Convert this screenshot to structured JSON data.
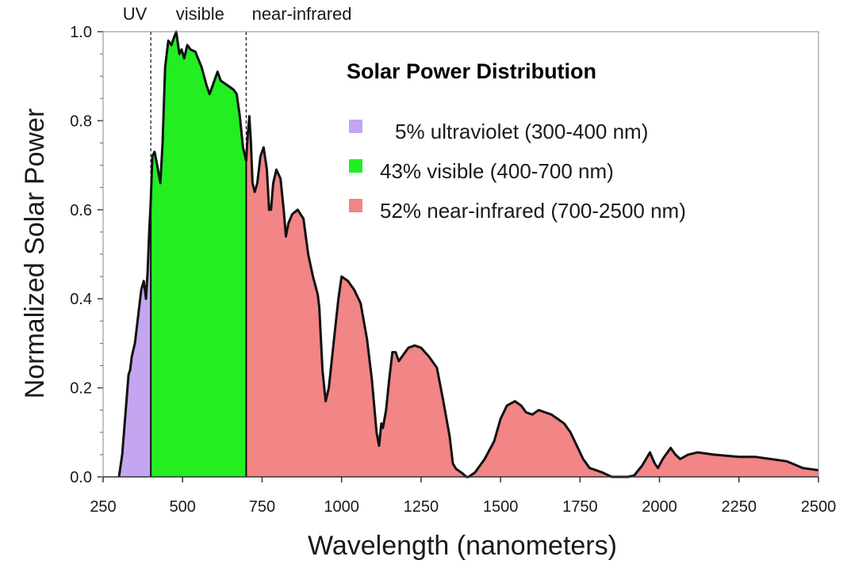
{
  "chart_data": {
    "type": "area",
    "title": "Solar Power Distribution",
    "xlabel": "Wavelength (nanometers)",
    "ylabel": "Normalized Solar Power",
    "xlim": [
      250,
      2500
    ],
    "ylim": [
      0,
      1.0
    ],
    "x_ticks": [
      250,
      500,
      750,
      1000,
      1250,
      1500,
      1750,
      2000,
      2250,
      2500
    ],
    "y_ticks": [
      0.0,
      0.2,
      0.4,
      0.6,
      0.8,
      1.0
    ],
    "y_tick_labels": [
      "0.0",
      "0.2",
      "0.4",
      "0.6",
      "0.8",
      "1.0"
    ],
    "grid": false,
    "legend_position": "top-right",
    "region_labels": [
      {
        "text": "UV",
        "x": 350
      },
      {
        "text": "visible",
        "x": 555
      },
      {
        "text": "near-infrared",
        "x": 875
      }
    ],
    "dividers": [
      400,
      700
    ],
    "series": [
      {
        "legend": "5% ultraviolet (300-400 nm)",
        "color": "#c4a6f0",
        "range": [
          300,
          400
        ],
        "points": [
          [
            300,
            0
          ],
          [
            310,
            0.05
          ],
          [
            320,
            0.14
          ],
          [
            330,
            0.23
          ],
          [
            335,
            0.24
          ],
          [
            340,
            0.27
          ],
          [
            350,
            0.3
          ],
          [
            360,
            0.36
          ],
          [
            370,
            0.42
          ],
          [
            378,
            0.44
          ],
          [
            385,
            0.4
          ],
          [
            390,
            0.46
          ],
          [
            395,
            0.55
          ],
          [
            400,
            0.62
          ]
        ]
      },
      {
        "legend": "43% visible (400-700 nm)",
        "color": "#22ee22",
        "range": [
          400,
          700
        ],
        "points": [
          [
            400,
            0.62
          ],
          [
            405,
            0.72
          ],
          [
            412,
            0.73
          ],
          [
            420,
            0.7
          ],
          [
            430,
            0.66
          ],
          [
            437,
            0.75
          ],
          [
            445,
            0.92
          ],
          [
            455,
            0.98
          ],
          [
            465,
            0.97
          ],
          [
            472,
            0.985
          ],
          [
            480,
            1.0
          ],
          [
            490,
            0.95
          ],
          [
            497,
            0.96
          ],
          [
            505,
            0.94
          ],
          [
            515,
            0.97
          ],
          [
            525,
            0.96
          ],
          [
            540,
            0.955
          ],
          [
            560,
            0.92
          ],
          [
            575,
            0.88
          ],
          [
            585,
            0.86
          ],
          [
            600,
            0.89
          ],
          [
            610,
            0.91
          ],
          [
            620,
            0.89
          ],
          [
            640,
            0.88
          ],
          [
            660,
            0.87
          ],
          [
            670,
            0.86
          ],
          [
            680,
            0.81
          ],
          [
            690,
            0.74
          ],
          [
            700,
            0.71
          ]
        ]
      },
      {
        "legend": "52% near-infrared (700-2500 nm)",
        "color": "#f28585",
        "range": [
          700,
          2500
        ],
        "points": [
          [
            700,
            0.71
          ],
          [
            705,
            0.77
          ],
          [
            710,
            0.81
          ],
          [
            715,
            0.75
          ],
          [
            720,
            0.66
          ],
          [
            727,
            0.64
          ],
          [
            735,
            0.66
          ],
          [
            745,
            0.72
          ],
          [
            755,
            0.74
          ],
          [
            765,
            0.69
          ],
          [
            772,
            0.6
          ],
          [
            778,
            0.6
          ],
          [
            785,
            0.66
          ],
          [
            795,
            0.69
          ],
          [
            808,
            0.67
          ],
          [
            818,
            0.6
          ],
          [
            825,
            0.54
          ],
          [
            833,
            0.57
          ],
          [
            845,
            0.59
          ],
          [
            862,
            0.6
          ],
          [
            880,
            0.58
          ],
          [
            895,
            0.5
          ],
          [
            910,
            0.45
          ],
          [
            925,
            0.41
          ],
          [
            930,
            0.38
          ],
          [
            940,
            0.24
          ],
          [
            950,
            0.17
          ],
          [
            960,
            0.2
          ],
          [
            975,
            0.3
          ],
          [
            990,
            0.4
          ],
          [
            1000,
            0.45
          ],
          [
            1020,
            0.44
          ],
          [
            1040,
            0.42
          ],
          [
            1060,
            0.39
          ],
          [
            1080,
            0.31
          ],
          [
            1095,
            0.22
          ],
          [
            1110,
            0.1
          ],
          [
            1118,
            0.07
          ],
          [
            1125,
            0.12
          ],
          [
            1130,
            0.11
          ],
          [
            1140,
            0.15
          ],
          [
            1150,
            0.22
          ],
          [
            1160,
            0.28
          ],
          [
            1170,
            0.28
          ],
          [
            1180,
            0.26
          ],
          [
            1190,
            0.27
          ],
          [
            1210,
            0.29
          ],
          [
            1230,
            0.295
          ],
          [
            1250,
            0.29
          ],
          [
            1275,
            0.27
          ],
          [
            1300,
            0.245
          ],
          [
            1320,
            0.17
          ],
          [
            1340,
            0.09
          ],
          [
            1350,
            0.03
          ],
          [
            1360,
            0.018
          ],
          [
            1380,
            0.008
          ],
          [
            1392,
            0.0
          ],
          [
            1400,
            0.0
          ],
          [
            1420,
            0.01
          ],
          [
            1450,
            0.04
          ],
          [
            1480,
            0.08
          ],
          [
            1500,
            0.13
          ],
          [
            1520,
            0.16
          ],
          [
            1545,
            0.17
          ],
          [
            1565,
            0.16
          ],
          [
            1580,
            0.145
          ],
          [
            1600,
            0.14
          ],
          [
            1620,
            0.15
          ],
          [
            1640,
            0.145
          ],
          [
            1660,
            0.14
          ],
          [
            1680,
            0.13
          ],
          [
            1700,
            0.12
          ],
          [
            1720,
            0.1
          ],
          [
            1740,
            0.07
          ],
          [
            1760,
            0.04
          ],
          [
            1780,
            0.02
          ],
          [
            1800,
            0.015
          ],
          [
            1820,
            0.01
          ],
          [
            1850,
            0.0
          ],
          [
            1900,
            0.0
          ],
          [
            1920,
            0.003
          ],
          [
            1945,
            0.025
          ],
          [
            1970,
            0.055
          ],
          [
            1985,
            0.03
          ],
          [
            1995,
            0.02
          ],
          [
            2010,
            0.04
          ],
          [
            2035,
            0.065
          ],
          [
            2050,
            0.05
          ],
          [
            2065,
            0.04
          ],
          [
            2090,
            0.05
          ],
          [
            2120,
            0.055
          ],
          [
            2170,
            0.05
          ],
          [
            2250,
            0.045
          ],
          [
            2300,
            0.045
          ],
          [
            2350,
            0.04
          ],
          [
            2400,
            0.035
          ],
          [
            2450,
            0.02
          ],
          [
            2500,
            0.015
          ]
        ]
      }
    ]
  }
}
